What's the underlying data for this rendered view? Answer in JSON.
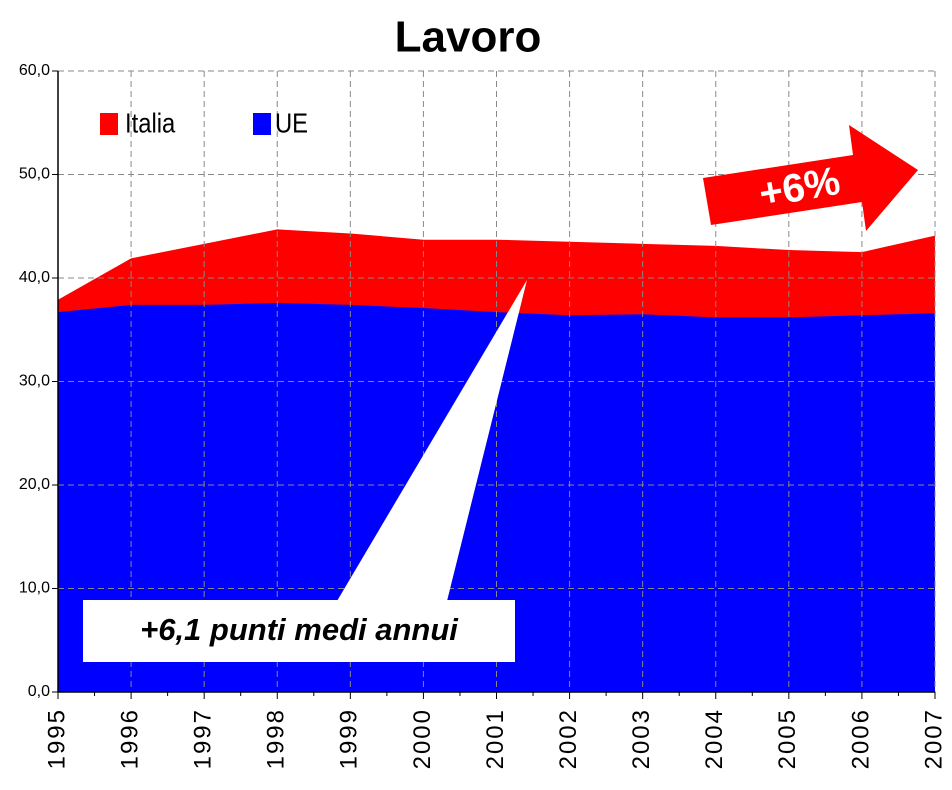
{
  "chart_data": {
    "type": "area",
    "title": "Lavoro",
    "categories": [
      "1995",
      "1996",
      "1997",
      "1998",
      "1999",
      "2000",
      "2001",
      "2002",
      "2003",
      "2004",
      "2005",
      "2006",
      "2007"
    ],
    "series": [
      {
        "name": "Italia",
        "color": "#ff0000",
        "values": [
          37.9,
          41.9,
          43.3,
          44.7,
          44.3,
          43.7,
          43.7,
          43.5,
          43.3,
          43.1,
          42.7,
          42.5,
          44.1
        ]
      },
      {
        "name": "UE",
        "color": "#0000ff",
        "values": [
          36.7,
          37.4,
          37.4,
          37.6,
          37.4,
          37.1,
          36.7,
          36.4,
          36.5,
          36.2,
          36.2,
          36.4,
          36.6
        ]
      }
    ],
    "ylim": [
      0,
      60
    ],
    "yticks": [
      {
        "value": 0,
        "label": "0,0"
      },
      {
        "value": 10,
        "label": "10,0"
      },
      {
        "value": 20,
        "label": "20,0"
      },
      {
        "value": 30,
        "label": "30,0"
      },
      {
        "value": 40,
        "label": "40,0"
      },
      {
        "value": 50,
        "label": "50,0"
      },
      {
        "value": 60,
        "label": "60,0"
      }
    ],
    "grid": true,
    "legend": "top-left",
    "annotations": [
      "+6%",
      "+6,1 punti medi annui"
    ]
  }
}
